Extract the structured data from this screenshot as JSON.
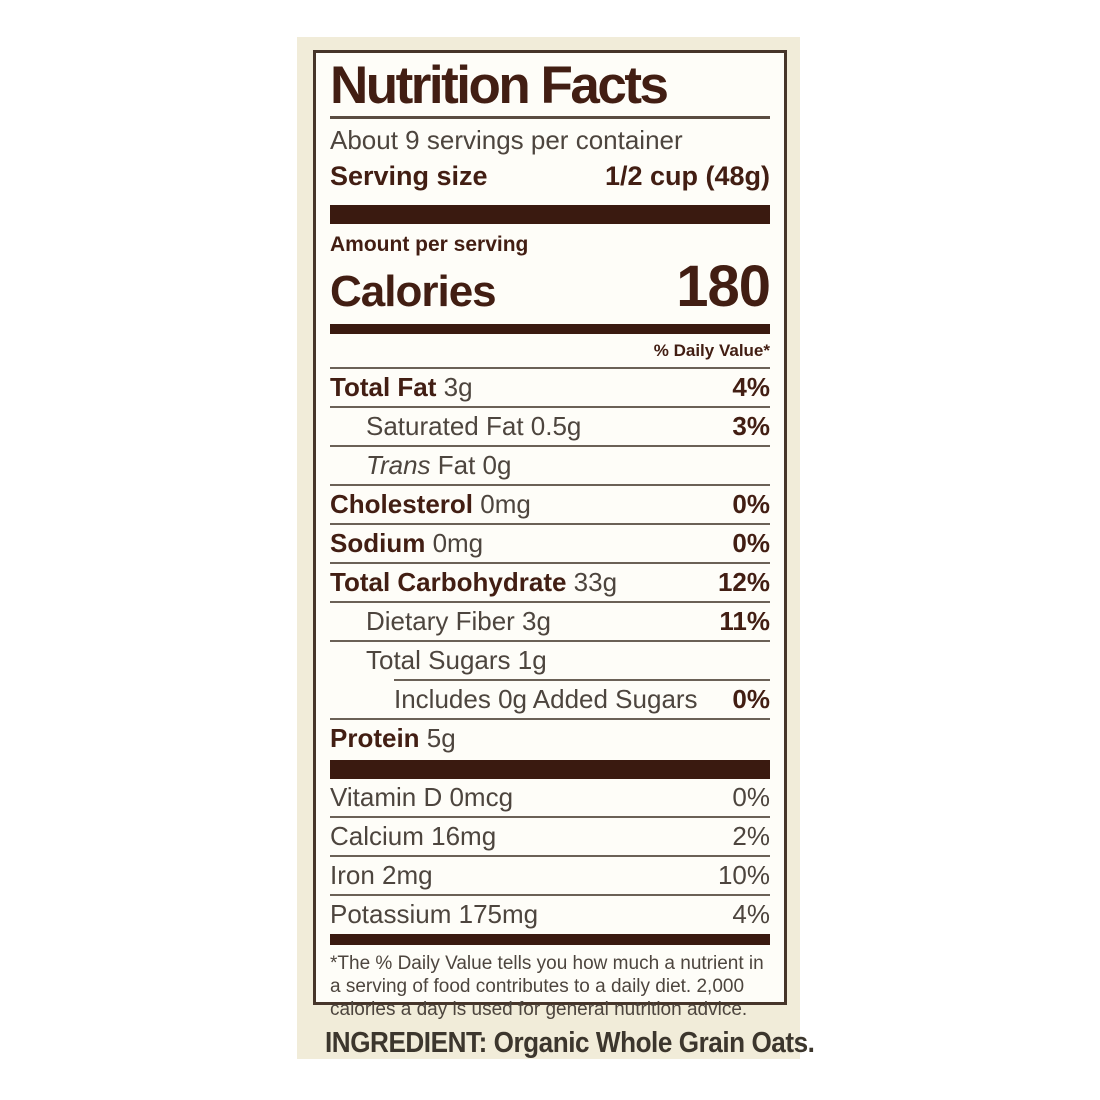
{
  "label": {
    "title": "Nutrition Facts",
    "servings_per_container": "About 9 servings per container",
    "serving_size_label": "Serving size",
    "serving_size_value": "1/2 cup (48g)",
    "amount_per_serving": "Amount per serving",
    "calories_label": "Calories",
    "calories_value": "180",
    "daily_value_header": "% Daily Value*",
    "nutrient_rows": [
      {
        "em": "",
        "strong": "Total Fat",
        "text": " 3g",
        "dv": "4%"
      },
      {
        "em": "",
        "strong": "",
        "text": "Saturated Fat 0.5g",
        "dv": "3%"
      },
      {
        "em": "Trans",
        "strong": "",
        "text": " Fat 0g",
        "dv": ""
      },
      {
        "em": "",
        "strong": "Cholesterol",
        "text": " 0mg",
        "dv": "0%"
      },
      {
        "em": "",
        "strong": "Sodium",
        "text": " 0mg",
        "dv": "0%"
      },
      {
        "em": "",
        "strong": "Total Carbohydrate",
        "text": " 33g",
        "dv": "12%"
      },
      {
        "em": "",
        "strong": "",
        "text": "Dietary Fiber 3g",
        "dv": "11%"
      },
      {
        "em": "",
        "strong": "",
        "text": "Total Sugars 1g",
        "dv": ""
      },
      {
        "em": "",
        "strong": "",
        "text": "Includes 0g Added Sugars",
        "dv": "0%"
      },
      {
        "em": "",
        "strong": "Protein",
        "text": " 5g",
        "dv": ""
      }
    ],
    "vitamin_rows": [
      {
        "text": "Vitamin D 0mcg",
        "dv": "0%"
      },
      {
        "text": "Calcium 16mg",
        "dv": "2%"
      },
      {
        "text": "Iron 2mg",
        "dv": "10%"
      },
      {
        "text": "Potassium 175mg",
        "dv": "4%"
      }
    ],
    "footnote_lines": [
      "*The % Daily Value tells you how much a nutrient in",
      "a serving of food contributes to a daily diet. 2,000",
      "calories a day is used for general nutrition advice."
    ]
  },
  "ingredient_line": "INGREDIENT: Organic Whole Grain Oats.",
  "colors": {
    "page_background": "#ffffff",
    "panel_background": "#f1ecd9",
    "box_background": "#fefdf8",
    "box_border": "#46352a",
    "dark_brown_text": "#421e13",
    "bar_brown": "#3a1a10",
    "regular_text": "#4d453e",
    "divider_line": "#6b6157"
  }
}
